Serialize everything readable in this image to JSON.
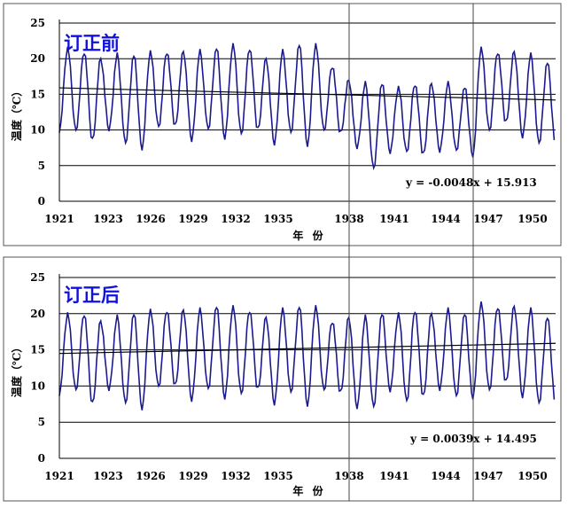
{
  "chart_data": [
    {
      "type": "line",
      "title": "订正前",
      "ylabel": "温度（℃）",
      "xlabel": "年 份",
      "ylim": [
        0,
        25
      ],
      "yticks": [
        0,
        5,
        10,
        15,
        20,
        25
      ],
      "xlim": [
        1921,
        1951
      ],
      "xticks": [
        1921,
        1923,
        1926,
        1929,
        1932,
        1935,
        1938,
        1941,
        1944,
        1947,
        1950
      ],
      "grid": "horizontal",
      "equation": "y = -0.0048x + 15.913",
      "trend": {
        "slope": -0.0048,
        "intercept": 15.913,
        "start": 15.91,
        "end": 14.2
      },
      "colors": {
        "series": "#1a1a8c",
        "trend": "#000000"
      },
      "series": [
        {
          "interval": "monthly",
          "winters": [
            10.0,
            10.0,
            8.5,
            10.0,
            8.0,
            7.5,
            10.5,
            10.5,
            8.5,
            10.0,
            9.0,
            9.5,
            10.0,
            8.0,
            9.5,
            8.0,
            10.0,
            9.5,
            7.5,
            4.5,
            7.0,
            7.0,
            6.5,
            7.0,
            7.0,
            6.5,
            10.0,
            11.0,
            9.0,
            8.0
          ],
          "summers": [
            21.5,
            21.0,
            20.0,
            20.5,
            20.5,
            21.0,
            21.0,
            21.0,
            21.0,
            21.5,
            22.0,
            21.5,
            20.0,
            21.0,
            22.0,
            22.0,
            19.0,
            17.0,
            16.5,
            16.5,
            16.0,
            16.5,
            16.5,
            16.5,
            16.0,
            21.5,
            21.0,
            21.0,
            20.5,
            19.5
          ]
        }
      ]
    },
    {
      "type": "line",
      "title": "订正后",
      "ylabel": "温度（℃）",
      "xlabel": "年 份",
      "ylim": [
        0,
        25
      ],
      "yticks": [
        0,
        5,
        10,
        15,
        20,
        25
      ],
      "xlim": [
        1921,
        1951
      ],
      "xticks": [
        1921,
        1923,
        1926,
        1929,
        1932,
        1935,
        1938,
        1941,
        1944,
        1947,
        1950
      ],
      "grid": "horizontal",
      "equation": "y = 0.0039x + 14.495",
      "trend": {
        "slope": 0.0039,
        "intercept": 14.495,
        "start": 14.5,
        "end": 15.9
      },
      "colors": {
        "series": "#1a1a8c",
        "trend": "#000000"
      },
      "series": [
        {
          "interval": "monthly",
          "winters": [
            9.0,
            9.5,
            7.5,
            9.5,
            7.5,
            7.0,
            10.0,
            10.0,
            8.0,
            9.5,
            8.5,
            9.0,
            9.5,
            7.5,
            9.0,
            7.5,
            9.5,
            9.0,
            7.0,
            7.0,
            9.5,
            8.0,
            8.5,
            9.5,
            8.5,
            8.5,
            9.5,
            10.5,
            8.5,
            7.5
          ],
          "summers": [
            20.0,
            20.0,
            19.0,
            19.5,
            20.0,
            20.5,
            20.5,
            20.5,
            20.5,
            21.0,
            21.0,
            20.5,
            19.5,
            20.5,
            21.0,
            21.0,
            19.0,
            19.5,
            19.5,
            20.0,
            20.0,
            20.5,
            20.0,
            20.5,
            20.0,
            21.5,
            21.0,
            21.0,
            20.5,
            19.5
          ]
        }
      ]
    }
  ]
}
